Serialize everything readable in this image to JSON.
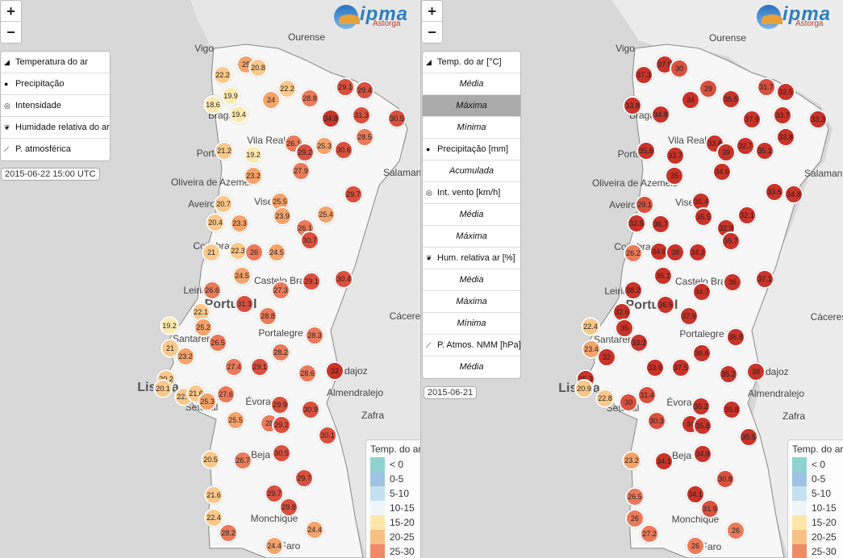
{
  "left_panel": {
    "zoom": {
      "in_label": "+",
      "out_label": "−"
    },
    "logo": {
      "text": "ipma",
      "sub": "Astorga"
    },
    "menu_items": [
      {
        "icon": "chart-area-icon",
        "label": "Temperatura do ar"
      },
      {
        "icon": "drop-icon",
        "label": "Precipitação"
      },
      {
        "icon": "wind-dial-icon",
        "label": "Intensidade"
      },
      {
        "icon": "leaf-icon",
        "label": "Humidade relativa do ar"
      },
      {
        "icon": "chart-line-icon",
        "label": "P. atmosférica"
      }
    ],
    "timestamp": "2015-06-22 15:00 UTC"
  },
  "right_panel": {
    "zoom": {
      "in_label": "+",
      "out_label": "−"
    },
    "logo": {
      "text": "ipma",
      "sub": "Astorga"
    },
    "menu_items": [
      {
        "type": "header",
        "icon": "chart-area-icon",
        "label": "Temp. do ar [°C]"
      },
      {
        "type": "sub",
        "label": "Média"
      },
      {
        "type": "sub",
        "label": "Máxima",
        "selected": true
      },
      {
        "type": "sub",
        "label": "Mínima"
      },
      {
        "type": "header",
        "icon": "drop-icon",
        "label": "Precipitação [mm]"
      },
      {
        "type": "sub",
        "label": "Acumulada"
      },
      {
        "type": "header",
        "icon": "wind-dial-icon",
        "label": "Int. vento [km/h]"
      },
      {
        "type": "sub",
        "label": "Média"
      },
      {
        "type": "sub",
        "label": "Máxima"
      },
      {
        "type": "header",
        "icon": "leaf-icon",
        "label": "Hum. relativa ar [%]"
      },
      {
        "type": "sub",
        "label": "Média"
      },
      {
        "type": "sub",
        "label": "Máxima"
      },
      {
        "type": "sub",
        "label": "Mínima"
      },
      {
        "type": "header",
        "icon": "chart-line-icon",
        "label": "P. Atmos. NMM [hPa]"
      },
      {
        "type": "sub",
        "label": "Média"
      }
    ],
    "timestamp": "2015-06-21"
  },
  "legend": {
    "title": "Temp. do ar",
    "rows": [
      {
        "label": "< 0",
        "color": "#8fd3cf"
      },
      {
        "label": "0-5",
        "color": "#9ec3e3"
      },
      {
        "label": "5-10",
        "color": "#c3e1f0"
      },
      {
        "label": "10-15",
        "color": "#eef6fb"
      },
      {
        "label": "15-20",
        "color": "#fde6a8"
      },
      {
        "label": "20-25",
        "color": "#f8c184"
      },
      {
        "label": "25-30",
        "color": "#f08a66"
      }
    ]
  },
  "cities": [
    "Vigo",
    "Ourense",
    "Braga",
    "Vila Real",
    "Porto",
    "Oliveira de Azeméis",
    "Aveiro",
    "Viseu",
    "Salamanca",
    "Coimbra",
    "Castelo Branco",
    "Leiria",
    "Portugal",
    "Cáceres",
    "Santarém",
    "Portalegre",
    "Lisboa",
    "Badajoz",
    "Almendralejo",
    "Setúbal",
    "Évora",
    "Zafra",
    "Beja",
    "Monchique",
    "Faro"
  ],
  "stations_left": [
    [
      "25",
      305,
      80
    ],
    [
      "20.8",
      320,
      84
    ],
    [
      "22.2",
      276,
      93
    ],
    [
      "19.9",
      286,
      119
    ],
    [
      "18.6",
      264,
      130
    ],
    [
      "19.4",
      296,
      142
    ],
    [
      "24",
      336,
      124
    ],
    [
      "22.2",
      356,
      110
    ],
    [
      "29.1",
      428,
      108
    ],
    [
      "29.4",
      452,
      112
    ],
    [
      "28.8",
      384,
      122
    ],
    [
      "34.8",
      410,
      147
    ],
    [
      "31.3",
      448,
      143
    ],
    [
      "30.5",
      492,
      147
    ],
    [
      "28.5",
      452,
      170
    ],
    [
      "26.1",
      364,
      178
    ],
    [
      "29.2",
      378,
      189
    ],
    [
      "25.3",
      402,
      181
    ],
    [
      "30.6",
      426,
      186
    ],
    [
      "21.2",
      278,
      187
    ],
    [
      "19.2",
      314,
      192
    ],
    [
      "27.9",
      373,
      212
    ],
    [
      "23.2",
      314,
      218
    ],
    [
      "29.7",
      438,
      241
    ],
    [
      "25.5",
      347,
      250
    ],
    [
      "20.7",
      277,
      253
    ],
    [
      "23.9",
      350,
      268
    ],
    [
      "25.4",
      404,
      266
    ],
    [
      "20.4",
      267,
      276
    ],
    [
      "23.3",
      297,
      277
    ],
    [
      "26.1",
      378,
      283
    ],
    [
      "30.7",
      384,
      298
    ],
    [
      "21",
      262,
      313
    ],
    [
      "22.3",
      295,
      311
    ],
    [
      "26",
      315,
      313
    ],
    [
      "24.5",
      343,
      313
    ],
    [
      "24.5",
      300,
      342
    ],
    [
      "26.6",
      263,
      360
    ],
    [
      "27.3",
      348,
      360
    ],
    [
      "29.1",
      386,
      349
    ],
    [
      "30.4",
      426,
      346
    ],
    [
      "22.1",
      249,
      387
    ],
    [
      "31.3",
      303,
      377
    ],
    [
      "28.8",
      332,
      392
    ],
    [
      "19.2",
      210,
      404
    ],
    [
      "25.2",
      252,
      406
    ],
    [
      "28.3",
      390,
      416
    ],
    [
      "26.5",
      270,
      425
    ],
    [
      "21",
      211,
      432
    ],
    [
      "23.2",
      230,
      442
    ],
    [
      "28.2",
      348,
      437
    ],
    [
      "27.4",
      290,
      455
    ],
    [
      "29.1",
      322,
      455
    ],
    [
      "28.6",
      381,
      463
    ],
    [
      "32",
      415,
      460
    ],
    [
      "20.2",
      206,
      470
    ],
    [
      "20.1",
      202,
      482
    ],
    [
      "22.7",
      228,
      492
    ],
    [
      "21.6",
      243,
      488
    ],
    [
      "27.6",
      280,
      489
    ],
    [
      "25.3",
      257,
      498
    ],
    [
      "29.9",
      347,
      502
    ],
    [
      "30.9",
      385,
      508
    ],
    [
      "25.5",
      292,
      521
    ],
    [
      "28",
      334,
      525
    ],
    [
      "29.2",
      349,
      527
    ],
    [
      "30.1",
      406,
      540
    ],
    [
      "20.5",
      261,
      570
    ],
    [
      "26.7",
      301,
      571
    ],
    [
      "30.5",
      349,
      562
    ],
    [
      "29.7",
      377,
      593
    ],
    [
      "21.6",
      265,
      614
    ],
    [
      "29.7",
      340,
      612
    ],
    [
      "29.8",
      358,
      629
    ],
    [
      "22.4",
      265,
      642
    ],
    [
      "28.2",
      283,
      661
    ],
    [
      "24.4",
      390,
      657
    ],
    [
      "24.4",
      340,
      677
    ]
  ],
  "stations_right": [
    [
      "37.3",
      276,
      93
    ],
    [
      "37.5",
      302,
      80
    ],
    [
      "30",
      320,
      85
    ],
    [
      "29",
      356,
      110
    ],
    [
      "34",
      334,
      124
    ],
    [
      "33.8",
      262,
      131
    ],
    [
      "34.8",
      297,
      142
    ],
    [
      "35.5",
      384,
      123
    ],
    [
      "31.7",
      428,
      108
    ],
    [
      "32.5",
      452,
      114
    ],
    [
      "37.9",
      410,
      148
    ],
    [
      "33.7",
      448,
      143
    ],
    [
      "33.3",
      492,
      148
    ],
    [
      "33.8",
      452,
      170
    ],
    [
      "35.6",
      279,
      187
    ],
    [
      "33.7",
      315,
      193
    ],
    [
      "33.8",
      364,
      178
    ],
    [
      "39",
      378,
      189
    ],
    [
      "32.7",
      402,
      181
    ],
    [
      "35.1",
      426,
      187
    ],
    [
      "35",
      314,
      218
    ],
    [
      "34.6",
      373,
      213
    ],
    [
      "33.5",
      438,
      238
    ],
    [
      "34.8",
      462,
      241
    ],
    [
      "29.1",
      277,
      254
    ],
    [
      "35.4",
      347,
      250
    ],
    [
      "35.5",
      350,
      269
    ],
    [
      "32.1",
      404,
      267
    ],
    [
      "32.5",
      267,
      277
    ],
    [
      "36.7",
      297,
      278
    ],
    [
      "32.9",
      378,
      283
    ],
    [
      "35.7",
      384,
      299
    ],
    [
      "26.2",
      263,
      314
    ],
    [
      "34.6",
      295,
      312
    ],
    [
      "38",
      315,
      313
    ],
    [
      "34.2",
      343,
      313
    ],
    [
      "35.1",
      300,
      342
    ],
    [
      "36",
      386,
      350
    ],
    [
      "37.1",
      426,
      346
    ],
    [
      "38.2",
      263,
      360
    ],
    [
      "34.7",
      348,
      362
    ],
    [
      "36.6",
      303,
      378
    ],
    [
      "37.9",
      332,
      392
    ],
    [
      "32.6",
      249,
      387
    ],
    [
      "35",
      252,
      407
    ],
    [
      "22.4",
      210,
      405
    ],
    [
      "33.2",
      270,
      425
    ],
    [
      "36.8",
      390,
      418
    ],
    [
      "23.4",
      211,
      433
    ],
    [
      "32",
      230,
      443
    ],
    [
      "36.6",
      348,
      438
    ],
    [
      "33.9",
      290,
      456
    ],
    [
      "37.5",
      322,
      456
    ],
    [
      "35.2",
      381,
      464
    ],
    [
      "38",
      415,
      461
    ],
    [
      "35.3",
      204,
      470
    ],
    [
      "20.9",
      202,
      482
    ],
    [
      "22.8",
      228,
      494
    ],
    [
      "31.4",
      280,
      490
    ],
    [
      "30",
      257,
      499
    ],
    [
      "35.2",
      347,
      504
    ],
    [
      "35.8",
      385,
      508
    ],
    [
      "30.3",
      292,
      522
    ],
    [
      "34",
      334,
      526
    ],
    [
      "35.8",
      349,
      528
    ],
    [
      "35.5",
      406,
      542
    ],
    [
      "23.2",
      261,
      571
    ],
    [
      "34.1",
      301,
      572
    ],
    [
      "34.8",
      349,
      563
    ],
    [
      "30.8",
      377,
      594
    ],
    [
      "26.5",
      265,
      616
    ],
    [
      "34.1",
      340,
      613
    ],
    [
      "31.9",
      358,
      631
    ],
    [
      "26",
      265,
      643
    ],
    [
      "27.2",
      283,
      662
    ],
    [
      "26",
      390,
      658
    ],
    [
      "26",
      340,
      677
    ]
  ]
}
